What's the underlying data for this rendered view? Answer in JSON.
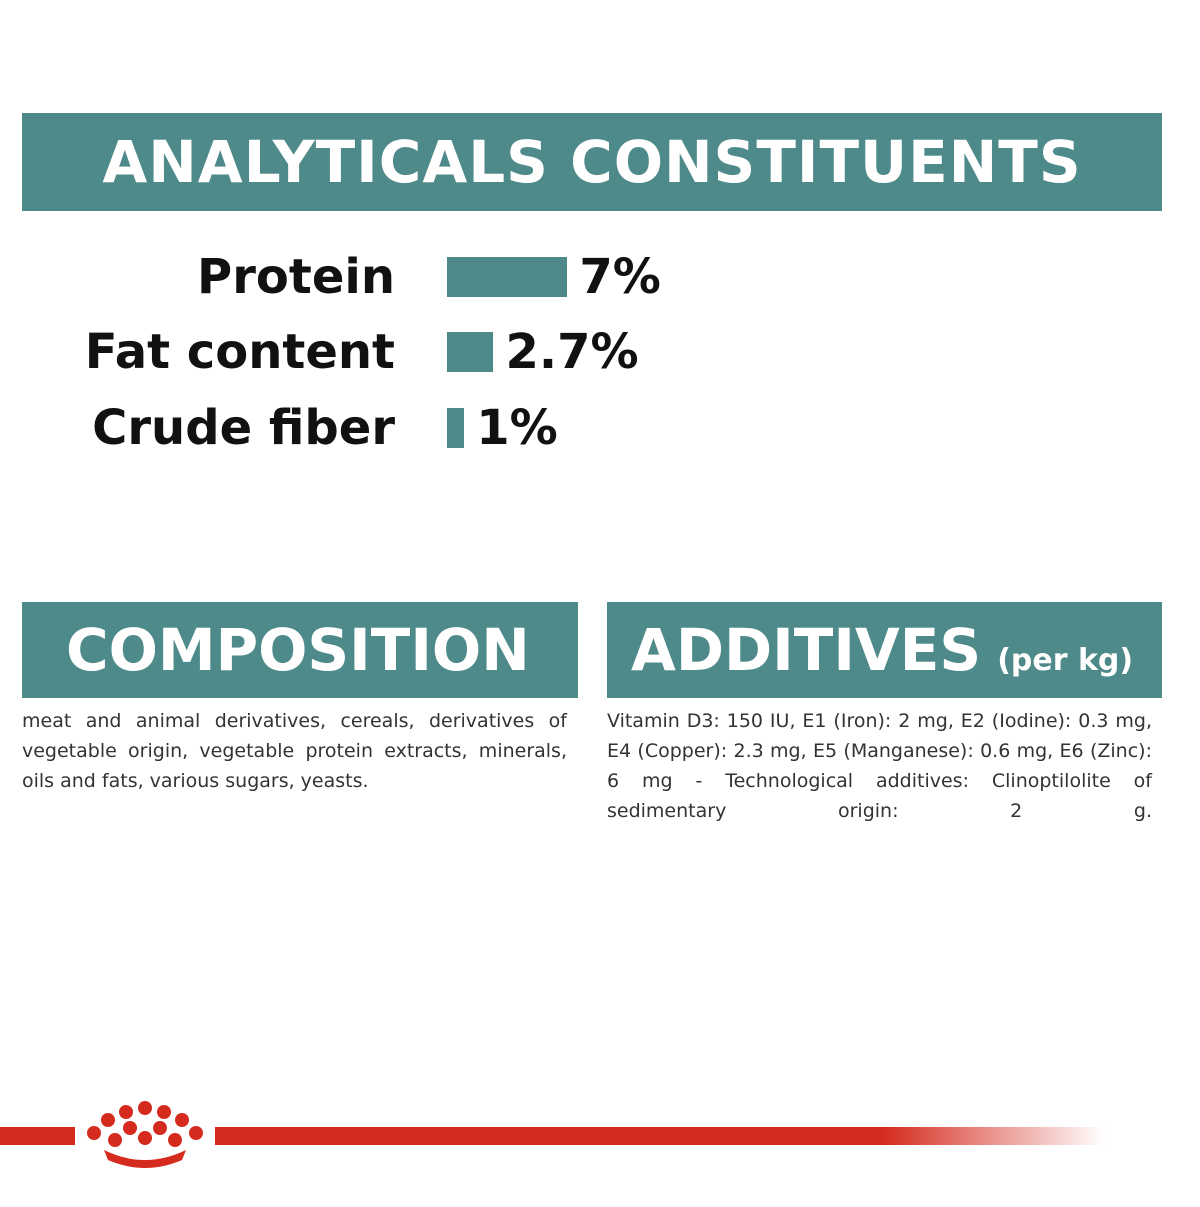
{
  "chart_data": {
    "type": "bar",
    "title": "ANALYTICALS CONSTITUENTS",
    "categories": [
      "Protein",
      "Fat content",
      "Crude fiber"
    ],
    "values": [
      7,
      2.7,
      1
    ],
    "value_labels": [
      "7%",
      "2.7%",
      "1%"
    ],
    "color": "#4f8a8b"
  },
  "composition": {
    "title": "COMPOSITION",
    "text": "meat and animal derivatives, cereals, derivatives of vegetable origin, vegetable protein extracts, minerals, oils and fats, various sugars, yeasts."
  },
  "additives": {
    "title": "ADDITIVES",
    "subtitle": "(per kg)",
    "text": "Vitamin D3: 150 IU, E1 (Iron): 2 mg, E2 (Iodine): 0.3 mg, E4 (Copper): 2.3 mg, E5 (Manganese): 0.6 mg, E6 (Zinc): 6 mg - Technological additives: Clinoptilolite of sedimentary origin: 2 g."
  }
}
